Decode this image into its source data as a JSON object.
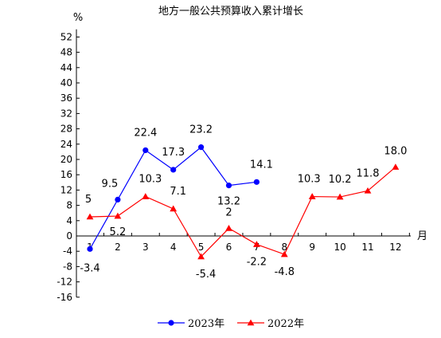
{
  "chart_data": {
    "type": "line",
    "title": "地方一般公共预算收入累计增长",
    "ylabel": "%",
    "xlabel": "月",
    "ylim": [
      -16,
      54
    ],
    "yticks": [
      -16,
      -12,
      -8,
      -4,
      0,
      4,
      8,
      12,
      16,
      20,
      24,
      28,
      32,
      36,
      40,
      44,
      48,
      52
    ],
    "categories": [
      "1",
      "2",
      "3",
      "4",
      "5",
      "6",
      "7",
      "8",
      "9",
      "10",
      "11",
      "12"
    ],
    "series": [
      {
        "name": "2023年",
        "color": "#0000ff",
        "marker": "circle",
        "values": [
          -3.4,
          9.5,
          22.4,
          17.3,
          23.2,
          13.2,
          14.1,
          null,
          null,
          null,
          null,
          null
        ],
        "labels": [
          "-3.4",
          "9.5",
          "22.4",
          "17.3",
          "23.2",
          "13.2",
          "14.1",
          null,
          null,
          null,
          null,
          null
        ]
      },
      {
        "name": "2022年",
        "color": "#ff0000",
        "marker": "triangle",
        "values": [
          5,
          5.2,
          10.3,
          7.1,
          -5.4,
          2,
          -2.2,
          -4.8,
          10.3,
          10.2,
          11.8,
          18.0
        ],
        "labels": [
          "5",
          "5.2",
          "10.3",
          "7.1",
          "-5.4",
          "2",
          "-2.2",
          "-4.8",
          "10.3",
          "10.2",
          "11.8",
          "18.0"
        ]
      }
    ],
    "legend": "bottom"
  }
}
